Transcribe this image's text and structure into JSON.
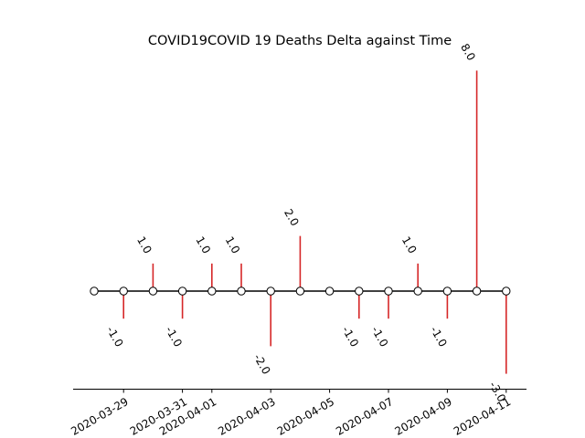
{
  "chart_data": {
    "type": "stem",
    "title": "COVID19COVID 19 Deaths Delta against Time",
    "xlabel": "",
    "ylabel": "",
    "x": [
      "2020-03-28",
      "2020-03-29",
      "2020-03-30",
      "2020-03-31",
      "2020-04-01",
      "2020-04-02",
      "2020-04-03",
      "2020-04-04",
      "2020-04-05",
      "2020-04-06",
      "2020-04-07",
      "2020-04-08",
      "2020-04-09",
      "2020-04-10",
      "2020-04-11"
    ],
    "values": [
      0,
      -1,
      1,
      -1,
      1,
      1,
      -2,
      2,
      0,
      -1,
      -1,
      1,
      -1,
      8,
      -3
    ],
    "value_labels": [
      "",
      "-1.0",
      "1.0",
      "-1.0",
      "1.0",
      "1.0",
      "-2.0",
      "2.0",
      "",
      "-1.0",
      "-1.0",
      "1.0",
      "-1.0",
      "8.0",
      "-3.0"
    ],
    "x_ticks": [
      "2020-03-29",
      "2020-03-31",
      "2020-04-01",
      "2020-04-03",
      "2020-04-05",
      "2020-04-07",
      "2020-04-09",
      "2020-04-11"
    ],
    "stem_color": "#d62728",
    "baseline_color": "#000000",
    "marker_face": "#ffffff",
    "marker_edge": "#000000",
    "grid": false,
    "legend": "none"
  }
}
